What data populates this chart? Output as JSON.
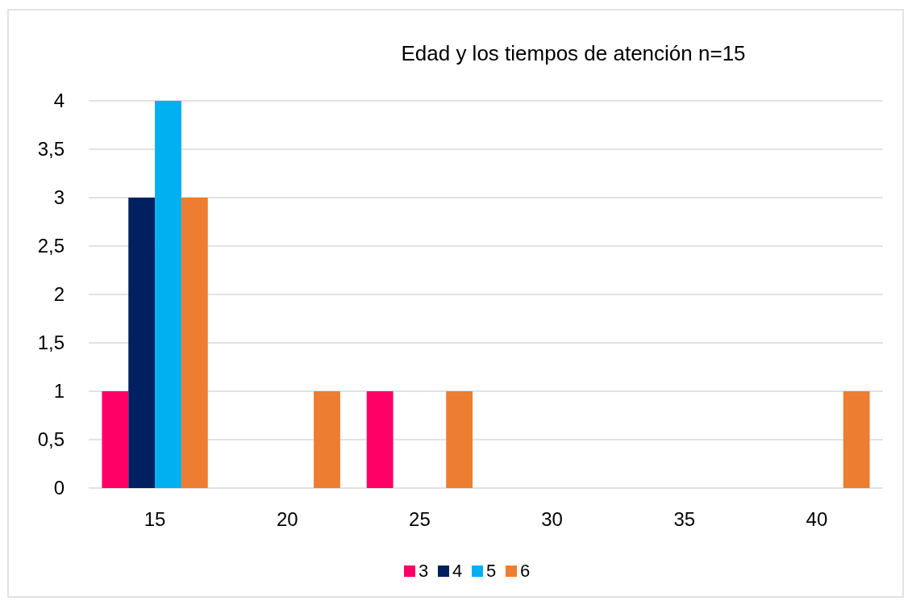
{
  "chart_data": {
    "type": "bar",
    "title": "Edad y los tiempos de atención n=15",
    "categories": [
      "15",
      "20",
      "25",
      "30",
      "35",
      "40"
    ],
    "series": [
      {
        "name": "3",
        "color": "#ff0066",
        "values": [
          1,
          0,
          1,
          0,
          0,
          0
        ]
      },
      {
        "name": "4",
        "color": "#002060",
        "values": [
          3,
          0,
          0,
          0,
          0,
          0
        ]
      },
      {
        "name": "5",
        "color": "#00b0f0",
        "values": [
          4,
          0,
          0,
          0,
          0,
          0
        ]
      },
      {
        "name": "6",
        "color": "#ed7d31",
        "values": [
          3,
          1,
          1,
          0,
          0,
          1
        ]
      }
    ],
    "ylim": [
      0,
      4
    ],
    "yticks": [
      0,
      {
        "value": 0.5,
        "label": "0,5"
      },
      1,
      {
        "value": 1.5,
        "label": "1,5"
      },
      2,
      {
        "value": 2.5,
        "label": "2,5"
      },
      3,
      {
        "value": 3.5,
        "label": "3,5"
      },
      4
    ],
    "grid": "y",
    "legend": "bottom"
  }
}
